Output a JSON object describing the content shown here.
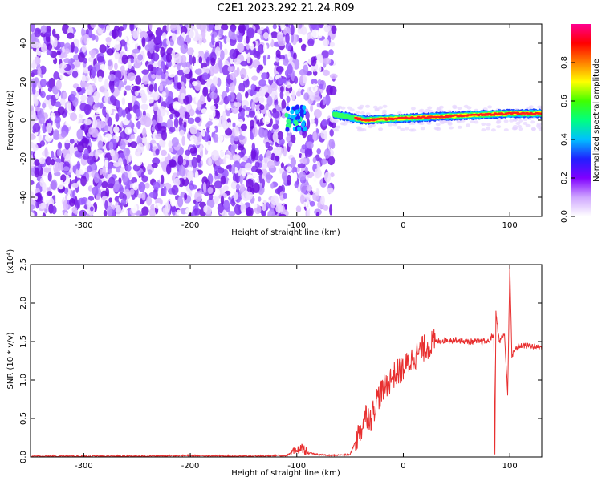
{
  "title": "C2E1.2023.292.21.24.R09",
  "chart_data": [
    {
      "type": "heatmap",
      "xlabel": "Height of straight line (km)",
      "ylabel": "Frequency (Hz)",
      "xlim": [
        -350,
        130
      ],
      "ylim": [
        -50,
        50
      ],
      "xticks": [
        -300,
        -200,
        -100,
        0,
        100
      ],
      "yticks": [
        -40,
        -20,
        0,
        20,
        40
      ],
      "colorbar": {
        "label": "Normalized spectral amplitude",
        "range": [
          0,
          1
        ],
        "ticks": [
          "0.0",
          "0.2",
          "0.4",
          "0.6",
          "0.8"
        ],
        "colors": [
          "#ffffff",
          "#cfa6ff",
          "#8000ff",
          "#2020ff",
          "#00c0ff",
          "#00ff80",
          "#40ff00",
          "#ffff00",
          "#ff8000",
          "#ff0000",
          "#ff0090"
        ]
      },
      "noise_region_x": [
        -350,
        -65
      ],
      "signal_trace": {
        "x": [
          -65,
          -55,
          -45,
          -35,
          -20,
          0,
          20,
          40,
          60,
          80,
          100,
          130
        ],
        "frequency": [
          3,
          2,
          1,
          0,
          0.5,
          1,
          1.5,
          2,
          2.5,
          3,
          3.5,
          3.5
        ]
      }
    },
    {
      "type": "line",
      "xlabel": "Height of straight line (km)",
      "ylabel": "SNR (10 * v/v)",
      "yscale_label": "(x10⁴)",
      "xlim": [
        -350,
        130
      ],
      "ylim": [
        0,
        2.5
      ],
      "xticks": [
        -300,
        -200,
        -100,
        0,
        100
      ],
      "yticks": [
        "0.0",
        "0.5",
        "1.0",
        "1.5",
        "2.0",
        "2.5"
      ],
      "color": "#e83030",
      "series": [
        {
          "x": [
            -350,
            -300,
            -250,
            -200,
            -150,
            -110,
            -100,
            -95,
            -90,
            -70,
            -50,
            -45,
            -40,
            -35,
            -30,
            -25,
            -20,
            -15,
            -10,
            -5,
            0,
            5,
            10,
            20,
            30,
            40,
            50,
            60,
            70,
            80,
            85,
            86,
            87,
            90,
            95,
            98,
            100,
            102,
            105,
            110,
            120,
            130
          ],
          "values": [
            0.01,
            0.01,
            0.01,
            0.02,
            0.01,
            0.02,
            0.08,
            0.12,
            0.05,
            0.02,
            0.03,
            0.2,
            0.35,
            0.55,
            0.5,
            0.75,
            0.85,
            0.95,
            1.05,
            1.1,
            1.15,
            1.22,
            1.3,
            1.42,
            1.5,
            1.52,
            1.52,
            1.5,
            1.5,
            1.5,
            1.6,
            0.05,
            1.9,
            1.5,
            1.6,
            0.8,
            2.5,
            1.3,
            1.4,
            1.45,
            1.44,
            1.42
          ]
        }
      ]
    }
  ]
}
